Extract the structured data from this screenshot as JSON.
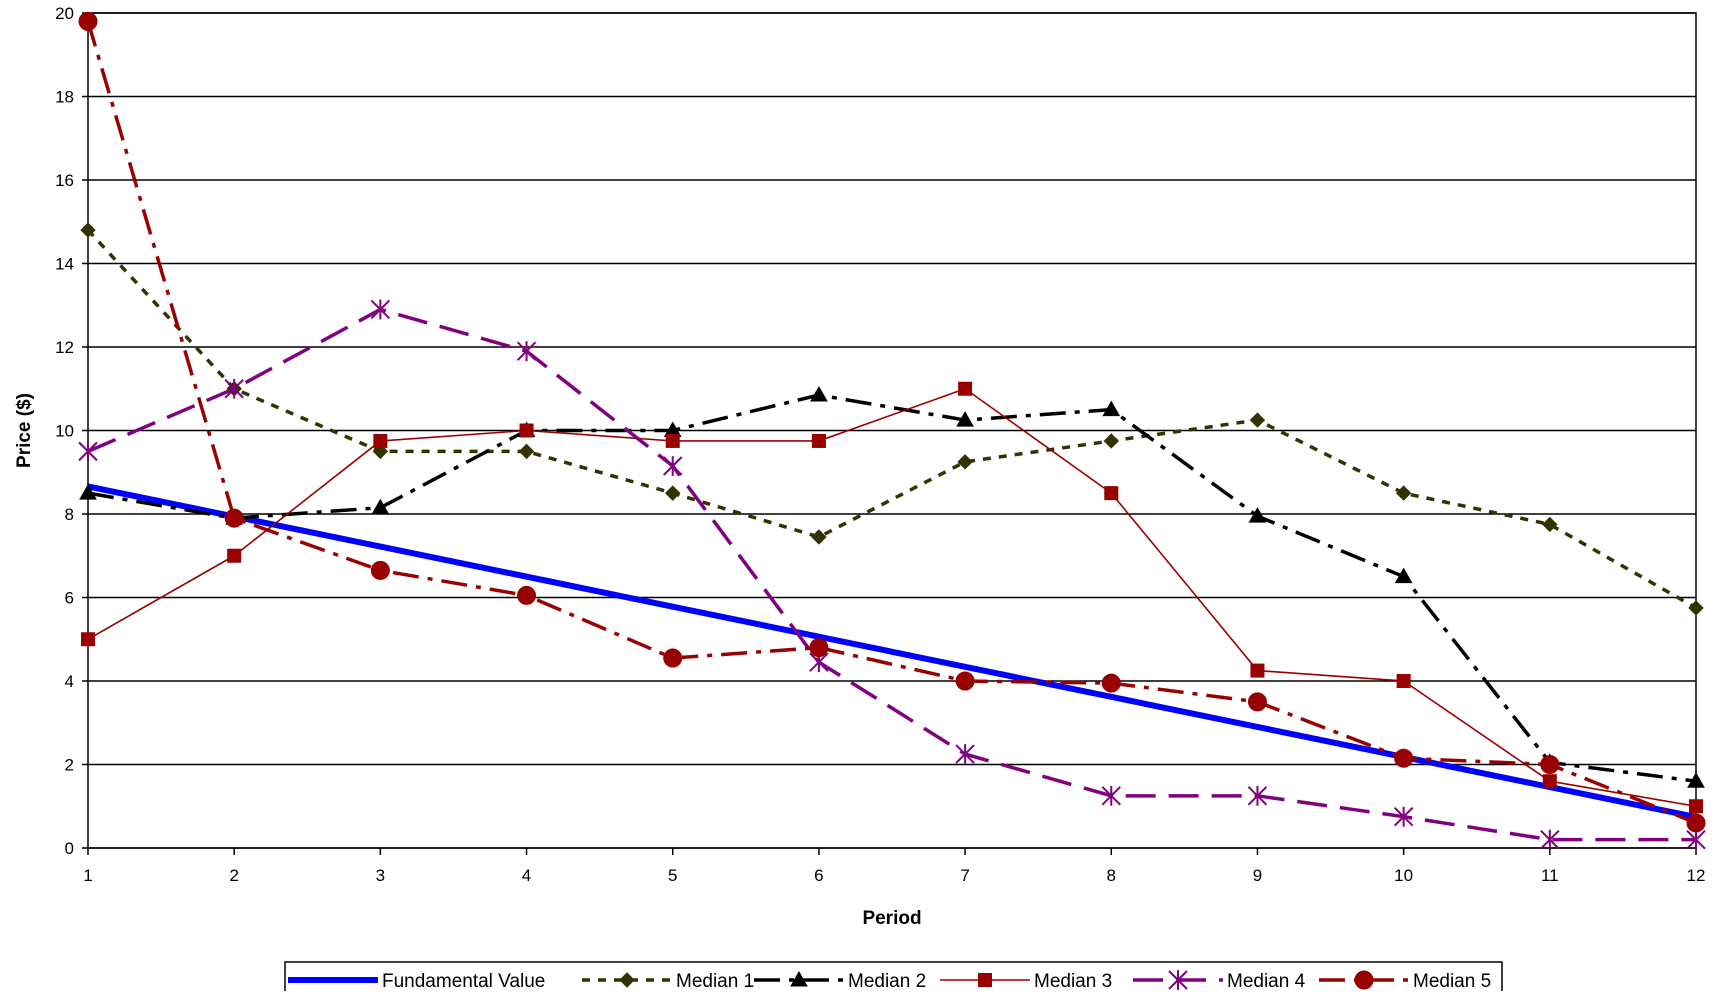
{
  "chart_data": {
    "type": "line",
    "title": "",
    "xlabel": "Period",
    "ylabel": "Price ($)",
    "x": [
      1,
      2,
      3,
      4,
      5,
      6,
      7,
      8,
      9,
      10,
      11,
      12
    ],
    "xlim": [
      1,
      12
    ],
    "ylim": [
      0,
      20
    ],
    "yticks": [
      0,
      2,
      4,
      6,
      8,
      10,
      12,
      14,
      16,
      18,
      20
    ],
    "grid": "horizontal",
    "legend_position": "bottom",
    "series": [
      {
        "name": "Fundamental Value",
        "values": [
          8.66,
          7.94,
          7.22,
          6.5,
          5.78,
          5.06,
          4.34,
          3.62,
          2.9,
          2.18,
          1.46,
          0.74
        ],
        "color": "#0000ff",
        "dash": "solid",
        "marker": "none"
      },
      {
        "name": "Median 1",
        "values": [
          14.8,
          11.0,
          9.5,
          9.5,
          8.5,
          7.45,
          9.25,
          9.75,
          10.25,
          8.5,
          7.75,
          5.75
        ],
        "color": "#333300",
        "dash": "short-dash",
        "marker": "diamond"
      },
      {
        "name": "Median 2",
        "values": [
          8.5,
          7.9,
          8.15,
          10.0,
          10.0,
          10.85,
          10.25,
          10.5,
          7.95,
          6.5,
          2.05,
          1.6
        ],
        "color": "#000000",
        "dash": "dash-dot",
        "marker": "triangle"
      },
      {
        "name": "Median 3",
        "values": [
          5.0,
          7.0,
          9.75,
          10.0,
          9.75,
          9.75,
          11.0,
          8.5,
          4.25,
          4.0,
          1.6,
          1.0
        ],
        "color": "#990000",
        "dash": "solid",
        "marker": "square"
      },
      {
        "name": "Median 4",
        "values": [
          9.5,
          11.0,
          12.9,
          11.9,
          9.15,
          4.45,
          2.25,
          1.25,
          1.25,
          0.75,
          0.2,
          0.2
        ],
        "color": "#800080",
        "dash": "long-dash",
        "marker": "star"
      },
      {
        "name": "Median 5",
        "values": [
          19.8,
          7.9,
          6.65,
          6.05,
          4.55,
          4.8,
          4.0,
          3.95,
          3.5,
          2.15,
          2.0,
          0.6
        ],
        "color": "#990000",
        "dash": "dash-dot",
        "marker": "circle"
      }
    ]
  }
}
